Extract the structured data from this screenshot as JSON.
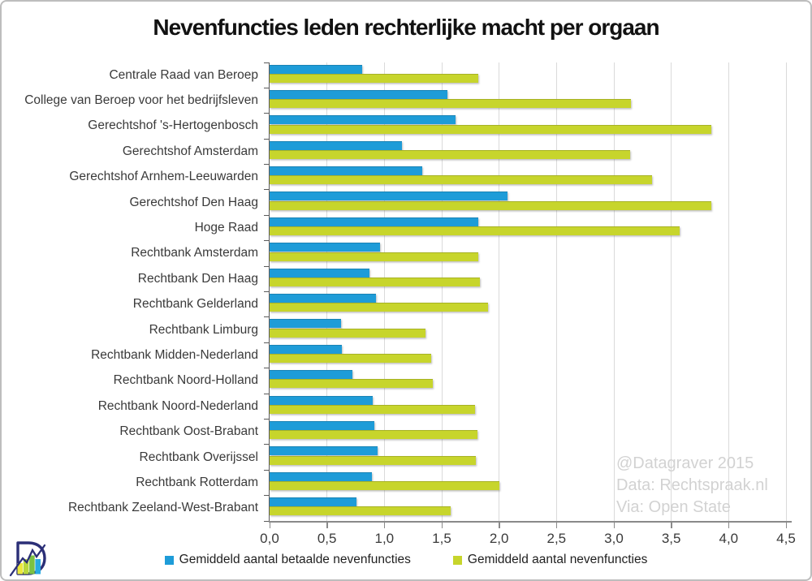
{
  "title": "Nevenfuncties leden rechterlijke macht per orgaan",
  "chart_data": {
    "type": "bar",
    "orientation": "horizontal",
    "title": "Nevenfuncties leden rechterlijke macht per orgaan",
    "categories": [
      "Centrale Raad van Beroep",
      "College van Beroep voor het bedrijfsleven",
      "Gerechtshof 's-Hertogenbosch",
      "Gerechtshof Amsterdam",
      "Gerechtshof Arnhem-Leeuwarden",
      "Gerechtshof Den Haag",
      "Hoge Raad",
      "Rechtbank Amsterdam",
      "Rechtbank Den Haag",
      "Rechtbank Gelderland",
      "Rechtbank Limburg",
      "Rechtbank Midden-Nederland",
      "Rechtbank Noord-Holland",
      "Rechtbank Noord-Nederland",
      "Rechtbank Oost-Brabant",
      "Rechtbank Overijssel",
      "Rechtbank Rotterdam",
      "Rechtbank Zeeland-West-Brabant"
    ],
    "series": [
      {
        "name": "Gemiddeld aantal betaalde nevenfuncties",
        "color": "#1E9CD8",
        "values": [
          0.81,
          1.55,
          1.62,
          1.15,
          1.33,
          2.07,
          1.82,
          0.96,
          0.87,
          0.93,
          0.62,
          0.63,
          0.72,
          0.9,
          0.91,
          0.94,
          0.89,
          0.76
        ]
      },
      {
        "name": "Gemiddeld aantal nevenfuncties",
        "color": "#C7D52C",
        "values": [
          1.82,
          3.15,
          3.85,
          3.14,
          3.33,
          3.85,
          3.57,
          1.82,
          1.83,
          1.9,
          1.36,
          1.41,
          1.42,
          1.79,
          1.81,
          1.8,
          2.0,
          1.58
        ]
      }
    ],
    "xlim": [
      0,
      4.5
    ],
    "xtick_step": 0.5,
    "xtick_labels": [
      "0,0",
      "0,5",
      "1,0",
      "1,5",
      "2,0",
      "2,5",
      "3,0",
      "3,5",
      "4,0",
      "4,5"
    ],
    "grid": true,
    "legend_position": "bottom"
  },
  "watermark": {
    "line1": "@Datagraver 2015",
    "line2": "Data: Rechtspraak.nl",
    "line3": "Via: Open State"
  },
  "colors": {
    "grid": "#dadada",
    "axis_x": "#8a8a8a",
    "axis_y": "#5a5a5a",
    "text": "#3a3a3a",
    "watermark": "#d2d2d2"
  },
  "logo": {
    "outline_color": "#2b2f77",
    "bar_colors": [
      "#ede93c",
      "#b9d83b",
      "#7cc242",
      "#29abe2"
    ]
  }
}
